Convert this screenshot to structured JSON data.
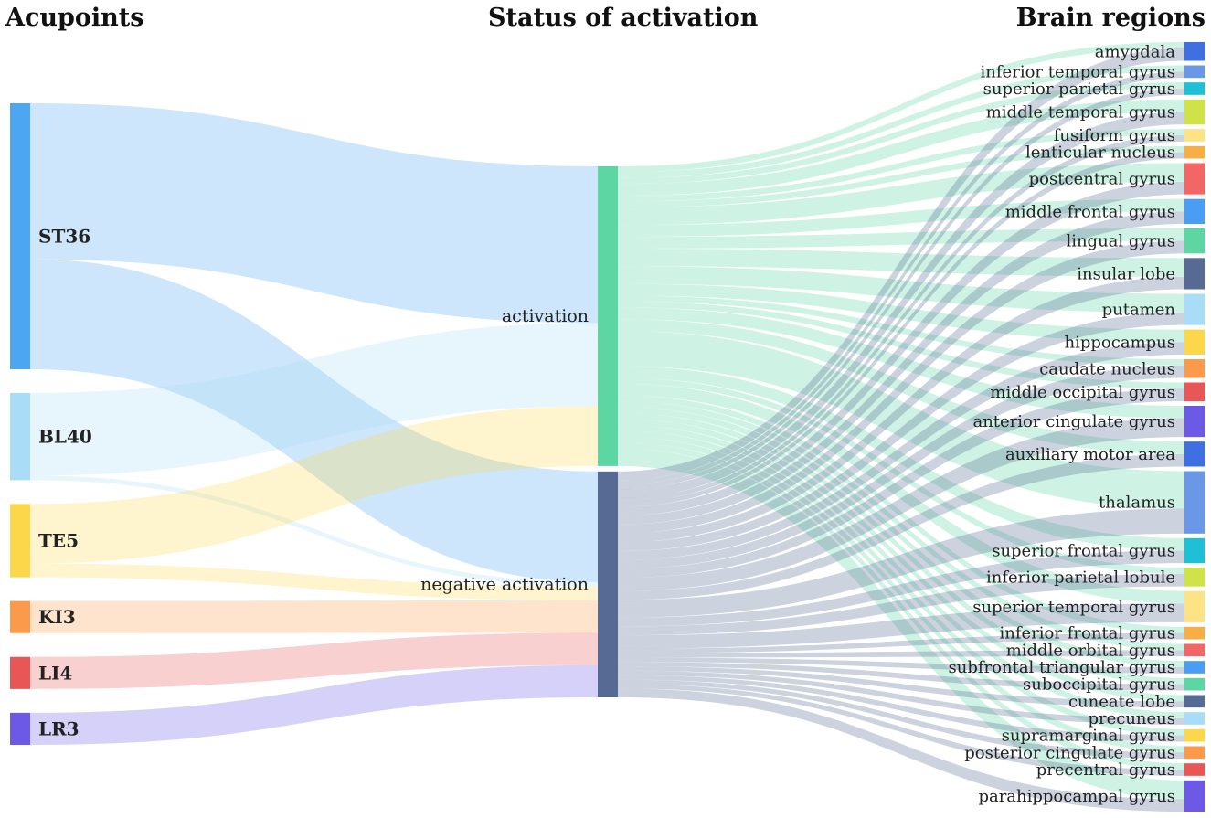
{
  "headings": {
    "acupoints": "Acupoints",
    "status": "Status of activation",
    "brain_regions": "Brain regions"
  },
  "chart_data": {
    "type": "sankey",
    "columns": [
      "Acupoints",
      "Status of activation",
      "Brain regions"
    ],
    "acupoints": [
      {
        "name": "ST36",
        "color": "#4da6f2",
        "value": 58
      },
      {
        "name": "BL40",
        "color": "#a9dcf6",
        "value": 19
      },
      {
        "name": "TE5",
        "color": "#fcd74a",
        "value": 16
      },
      {
        "name": "KI3",
        "color": "#fb9a4a",
        "value": 7
      },
      {
        "name": "LI4",
        "color": "#e85656",
        "value": 7
      },
      {
        "name": "LR3",
        "color": "#6c5ae6",
        "value": 7
      }
    ],
    "statuses": [
      {
        "name": "activation",
        "color": "#5dd6a4"
      },
      {
        "name": "negative activation",
        "color": "#566a93"
      }
    ],
    "acupoint_links": [
      {
        "source": "ST36",
        "target": "activation",
        "value": 34
      },
      {
        "source": "ST36",
        "target": "negative activation",
        "value": 24
      },
      {
        "source": "BL40",
        "target": "activation",
        "value": 18
      },
      {
        "source": "BL40",
        "target": "negative activation",
        "value": 1
      },
      {
        "source": "TE5",
        "target": "activation",
        "value": 13
      },
      {
        "source": "TE5",
        "target": "negative activation",
        "value": 3
      },
      {
        "source": "KI3",
        "target": "negative activation",
        "value": 7
      },
      {
        "source": "LI4",
        "target": "negative activation",
        "value": 7
      },
      {
        "source": "LR3",
        "target": "negative activation",
        "value": 7
      }
    ],
    "brain_regions": [
      {
        "name": "amygdala",
        "color": "#3f6fe0",
        "value": 3,
        "activation": 1
      },
      {
        "name": "inferior temporal gyrus",
        "color": "#6a98e6",
        "value": 2,
        "activation": 1
      },
      {
        "name": "superior parietal gyrus",
        "color": "#1fbfd6",
        "value": 2,
        "activation": 1
      },
      {
        "name": "middle temporal gyrus",
        "color": "#cfe24a",
        "value": 4,
        "activation": 2
      },
      {
        "name": "fusiform gyrus",
        "color": "#fde286",
        "value": 2,
        "activation": 1
      },
      {
        "name": "lenticular nucleus",
        "color": "#f7ae45",
        "value": 2,
        "activation": 1
      },
      {
        "name": "postcentral gyrus",
        "color": "#f26666",
        "value": 5,
        "activation": 3
      },
      {
        "name": "middle frontal gyrus",
        "color": "#4a9df2",
        "value": 4,
        "activation": 2
      },
      {
        "name": "lingual gyrus",
        "color": "#5dd6a4",
        "value": 4,
        "activation": 2
      },
      {
        "name": "insular lobe",
        "color": "#566a93",
        "value": 5,
        "activation": 3
      },
      {
        "name": "putamen",
        "color": "#a9dcf6",
        "value": 5,
        "activation": 3
      },
      {
        "name": "hippocampus",
        "color": "#fcd74a",
        "value": 4,
        "activation": 2
      },
      {
        "name": "caudate nucleus",
        "color": "#fb9a4a",
        "value": 3,
        "activation": 1
      },
      {
        "name": "middle occipital gyrus",
        "color": "#e85656",
        "value": 3,
        "activation": 1
      },
      {
        "name": "anterior cingulate gyrus",
        "color": "#6c5ae6",
        "value": 5,
        "activation": 2
      },
      {
        "name": "auxiliary motor area",
        "color": "#3f6fe0",
        "value": 4,
        "activation": 2
      },
      {
        "name": "thalamus",
        "color": "#6a98e6",
        "value": 10,
        "activation": 6
      },
      {
        "name": "superior frontal gyrus",
        "color": "#1fbfd6",
        "value": 4,
        "activation": 2
      },
      {
        "name": "inferior parietal lobule",
        "color": "#cfe24a",
        "value": 3,
        "activation": 1
      },
      {
        "name": "superior temporal gyrus",
        "color": "#fde286",
        "value": 5,
        "activation": 2
      },
      {
        "name": "inferior frontal gyrus",
        "color": "#f7ae45",
        "value": 2,
        "activation": 1
      },
      {
        "name": "middle orbital gyrus",
        "color": "#f26666",
        "value": 2,
        "activation": 1
      },
      {
        "name": "subfrontal triangular gyrus",
        "color": "#4a9df2",
        "value": 2,
        "activation": 1
      },
      {
        "name": "suboccipital gyrus",
        "color": "#5dd6a4",
        "value": 2,
        "activation": 1
      },
      {
        "name": "cuneate lobe",
        "color": "#566a93",
        "value": 2,
        "activation": 1
      },
      {
        "name": "precuneus",
        "color": "#a9dcf6",
        "value": 2,
        "activation": 1
      },
      {
        "name": "supramarginal gyrus",
        "color": "#fcd74a",
        "value": 2,
        "activation": 1
      },
      {
        "name": "posterior cingulate gyrus",
        "color": "#fb9a4a",
        "value": 2,
        "activation": 1
      },
      {
        "name": "precentral gyrus",
        "color": "#e85656",
        "value": 2,
        "activation": 1
      },
      {
        "name": "parahippocampal gyrus",
        "color": "#6c5ae6",
        "value": 5,
        "activation": 3
      }
    ]
  }
}
